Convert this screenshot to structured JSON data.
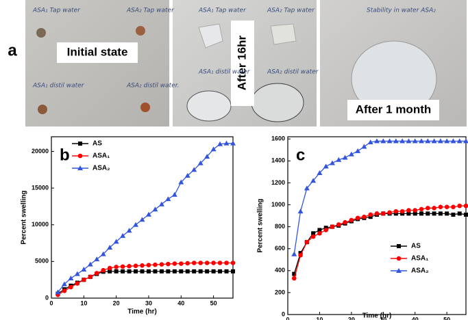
{
  "panel_a": {
    "letter": "a",
    "photos": [
      {
        "caption": "Initial state",
        "notes": [
          "ASA₁ Tap water",
          "ASA₂ Tap water",
          "ASA₁ distil water",
          "ASA₂ distil water."
        ]
      },
      {
        "caption": "After 16hr",
        "notes": [
          "ASA₁ Tap water",
          "ASA₂ Tap water",
          "ASA₁ distil water",
          "ASA₂ distil water"
        ]
      },
      {
        "caption": "After 1 month",
        "notes": [
          "Stability in water ASA₂"
        ]
      }
    ]
  },
  "chart_data": [
    {
      "type": "line",
      "letter": "b",
      "xlabel": "Time (hr)",
      "ylabel": "Percent swelling",
      "x": [
        2,
        4,
        6,
        8,
        10,
        12,
        14,
        16,
        18,
        20,
        22,
        24,
        26,
        28,
        30,
        32,
        34,
        36,
        38,
        40,
        42,
        44,
        46,
        48,
        50,
        52,
        54,
        56
      ],
      "xlim": [
        0,
        56
      ],
      "xticks": [
        0,
        10,
        20,
        30,
        40,
        50
      ],
      "ylim": [
        0,
        22000
      ],
      "yticks": [
        0,
        5000,
        10000,
        15000,
        20000
      ],
      "legend": "upper left",
      "series": [
        {
          "name": "AS",
          "color": "#000000",
          "marker": "square",
          "values": [
            600,
            1200,
            1700,
            2100,
            2500,
            2900,
            3300,
            3600,
            3650,
            3650,
            3650,
            3650,
            3650,
            3650,
            3650,
            3650,
            3650,
            3650,
            3650,
            3650,
            3650,
            3650,
            3650,
            3650,
            3650,
            3650,
            3650,
            3650
          ]
        },
        {
          "name": "ASA₁",
          "color": "#ff0000",
          "marker": "circle",
          "values": [
            450,
            1000,
            1500,
            2000,
            2500,
            2900,
            3400,
            3800,
            4100,
            4250,
            4300,
            4350,
            4400,
            4450,
            4500,
            4550,
            4600,
            4650,
            4700,
            4700,
            4750,
            4800,
            4800,
            4800,
            4800,
            4800,
            4800,
            4800
          ]
        },
        {
          "name": "ASA₂",
          "color": "#3355dd",
          "marker": "triangle",
          "values": [
            800,
            1900,
            2700,
            3300,
            3900,
            4600,
            5300,
            6000,
            6900,
            7700,
            8500,
            9200,
            10000,
            10700,
            11400,
            12100,
            12800,
            13500,
            14100,
            15800,
            16700,
            17500,
            18400,
            19300,
            20300,
            21000,
            21100,
            21100
          ]
        }
      ]
    },
    {
      "type": "line",
      "letter": "c",
      "xlabel": "Time (hr)",
      "ylabel": "Percent swelling",
      "x": [
        2,
        4,
        6,
        8,
        10,
        12,
        14,
        16,
        18,
        20,
        22,
        24,
        26,
        28,
        30,
        32,
        34,
        36,
        38,
        40,
        42,
        44,
        46,
        48,
        50,
        52,
        54,
        56
      ],
      "xlim": [
        0,
        56
      ],
      "xticks": [
        0,
        10,
        20,
        30,
        40,
        50
      ],
      "ylim": [
        0,
        1620
      ],
      "yticks": [
        0,
        200,
        400,
        600,
        800,
        1000,
        1200,
        1400,
        1600
      ],
      "legend": "lower right",
      "series": [
        {
          "name": "AS",
          "color": "#000000",
          "marker": "square",
          "values": [
            370,
            560,
            660,
            740,
            770,
            790,
            800,
            810,
            830,
            850,
            870,
            880,
            890,
            910,
            920,
            920,
            920,
            920,
            920,
            920,
            920,
            920,
            920,
            920,
            920,
            910,
            920,
            910
          ]
        },
        {
          "name": "ASA₁",
          "color": "#ff0000",
          "marker": "circle",
          "values": [
            330,
            540,
            660,
            710,
            740,
            770,
            800,
            820,
            840,
            860,
            880,
            890,
            910,
            920,
            920,
            930,
            940,
            940,
            950,
            950,
            960,
            970,
            970,
            980,
            980,
            980,
            990,
            990
          ]
        },
        {
          "name": "ASA₂",
          "color": "#3355dd",
          "marker": "triangle",
          "values": [
            550,
            940,
            1150,
            1220,
            1290,
            1350,
            1380,
            1410,
            1430,
            1460,
            1490,
            1530,
            1570,
            1580,
            1580,
            1580,
            1580,
            1580,
            1580,
            1580,
            1580,
            1580,
            1580,
            1580,
            1580,
            1580,
            1580,
            1580
          ]
        }
      ]
    }
  ]
}
